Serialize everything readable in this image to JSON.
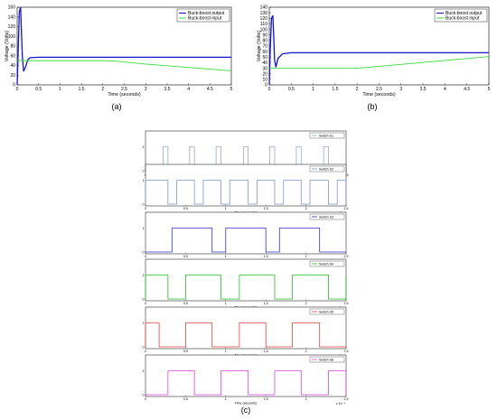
{
  "colors": {
    "output": "#1414c8",
    "input": "#3cd93c",
    "S1": "#9aa8c8",
    "S2": "#7a96c8",
    "S3": "#3030d0",
    "S4": "#20c020",
    "S5": "#e04040",
    "S6": "#e040e0"
  },
  "chart_data": [
    {
      "id": "a",
      "type": "line",
      "caption": "(a)",
      "xlabel": "Time (seconds)",
      "ylabel": "Voltage (Volts)",
      "xlim": [
        0,
        5
      ],
      "ylim": [
        0,
        160
      ],
      "xticks": [
        "0",
        "0.5",
        "1",
        "1.5",
        "2",
        "2.5",
        "3",
        "3.5",
        "4",
        "4.5",
        "5"
      ],
      "yticks": [
        "0",
        "20",
        "40",
        "60",
        "80",
        "100",
        "120",
        "140",
        "160"
      ],
      "legend_position": "top-right",
      "series": [
        {
          "name": "Buck-boost output",
          "x": [
            0,
            0.02,
            0.05,
            0.08,
            0.1,
            0.12,
            0.15,
            0.2,
            0.25,
            0.3,
            0.5,
            5
          ],
          "y": [
            0,
            60,
            150,
            160,
            110,
            60,
            28,
            38,
            52,
            56,
            57,
            57
          ]
        },
        {
          "name": "Buck-boost input",
          "x": [
            0,
            0.15,
            0.3,
            0.5,
            1,
            2,
            2.3,
            3,
            4,
            5
          ],
          "y": [
            50,
            50,
            50,
            50,
            50,
            50,
            49,
            43,
            36,
            29
          ]
        }
      ]
    },
    {
      "id": "b",
      "type": "line",
      "caption": "(b)",
      "xlabel": "Time (seconds)",
      "ylabel": "Voltage (Volts)",
      "xlim": [
        0,
        5
      ],
      "ylim": [
        0,
        140
      ],
      "xticks": [
        "0",
        "0.5",
        "1",
        "1.5",
        "2",
        "2.5",
        "3",
        "3.5",
        "4",
        "4.5",
        "5"
      ],
      "yticks": [
        "0",
        "10",
        "20",
        "30",
        "40",
        "50",
        "60",
        "70",
        "80",
        "90",
        "100",
        "110",
        "120",
        "130",
        "140"
      ],
      "legend_position": "top-right",
      "series": [
        {
          "name": "Buck-boost output",
          "x": [
            0,
            0.02,
            0.05,
            0.08,
            0.1,
            0.12,
            0.15,
            0.2,
            0.3,
            0.5,
            5
          ],
          "y": [
            0,
            60,
            120,
            125,
            90,
            45,
            32,
            48,
            56,
            58,
            58
          ]
        },
        {
          "name": "Buck-boost input",
          "x": [
            0,
            0.5,
            1,
            1.5,
            2,
            3,
            4,
            5
          ],
          "y": [
            30,
            30,
            30,
            30,
            30,
            37,
            44,
            51
          ]
        }
      ]
    },
    {
      "id": "c",
      "type": "line",
      "caption": "(c)",
      "xlabel": "Time (seconds)",
      "x_multiplier": "x 10⁻⁴",
      "xlim": [
        0,
        2.5
      ],
      "ylim": [
        0,
        1
      ],
      "xticks": [
        "0",
        "0.5",
        "1",
        "1.5",
        "2",
        "2.5"
      ],
      "yticks": [
        "0",
        "1"
      ],
      "legend_position": "top-right",
      "series": [
        {
          "name": "Switch S1",
          "edges": [
            [
              0.22,
              0.28
            ],
            [
              0.55,
              0.61
            ],
            [
              0.88,
              0.94
            ],
            [
              1.22,
              1.28
            ],
            [
              1.55,
              1.61
            ],
            [
              1.88,
              1.94
            ],
            [
              2.22,
              2.28
            ]
          ]
        },
        {
          "name": "Switch S2",
          "edges": [
            [
              0,
              0.28
            ],
            [
              0.39,
              0.61
            ],
            [
              0.72,
              0.94
            ],
            [
              1.05,
              1.28
            ],
            [
              1.39,
              1.61
            ],
            [
              1.72,
              1.94
            ],
            [
              2.05,
              2.28
            ],
            [
              2.39,
              2.5
            ]
          ]
        },
        {
          "name": "Switch S3",
          "edges": [
            [
              0.33,
              0.83
            ],
            [
              1.0,
              1.5
            ],
            [
              1.67,
              2.17
            ]
          ]
        },
        {
          "name": "Switch S4",
          "edges": [
            [
              0,
              0.28
            ],
            [
              0.5,
              0.94
            ],
            [
              1.17,
              1.61
            ],
            [
              1.83,
              2.28
            ],
            [
              2.5,
              2.5
            ]
          ]
        },
        {
          "name": "Switch S5",
          "edges": [
            [
              0,
              0.17
            ],
            [
              0.5,
              0.83
            ],
            [
              1.17,
              1.5
            ],
            [
              1.83,
              2.17
            ]
          ]
        },
        {
          "name": "Switch S6",
          "edges": [
            [
              0.28,
              0.61
            ],
            [
              0.94,
              1.28
            ],
            [
              1.61,
              1.94
            ],
            [
              2.28,
              2.5
            ]
          ]
        }
      ]
    }
  ]
}
